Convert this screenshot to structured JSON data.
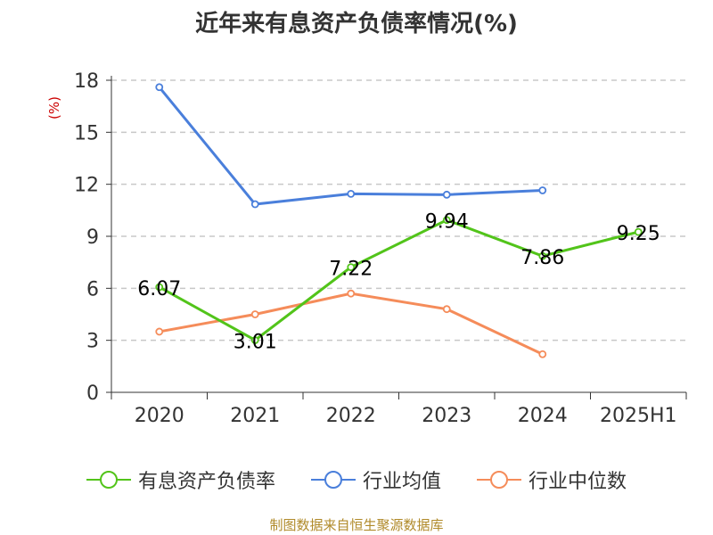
{
  "chart_data": {
    "type": "line",
    "title": "近年来有息资产负债率情况(%)",
    "ylabel": "(%)",
    "categories": [
      "2020",
      "2021",
      "2022",
      "2023",
      "2024",
      "2025H1"
    ],
    "ylim": [
      0,
      18
    ],
    "yticks": [
      0,
      3,
      6,
      9,
      12,
      15,
      18
    ],
    "grid": true,
    "legend_position": "bottom",
    "series": [
      {
        "name": "有息资产负债率",
        "color": "#52c41a",
        "values": [
          6.07,
          3.01,
          7.22,
          9.94,
          7.86,
          9.25
        ],
        "labels": [
          "6.07",
          "3.01",
          "7.22",
          "9.94",
          "7.86",
          "9.25"
        ]
      },
      {
        "name": "行业均值",
        "color": "#4a7fdb",
        "values": [
          17.6,
          10.85,
          11.45,
          11.4,
          11.65,
          null
        ]
      },
      {
        "name": "行业中位数",
        "color": "#f58c5a",
        "values": [
          3.5,
          4.5,
          5.7,
          4.8,
          2.2,
          null
        ]
      }
    ]
  },
  "source": "制图数据来自恒生聚源数据库"
}
